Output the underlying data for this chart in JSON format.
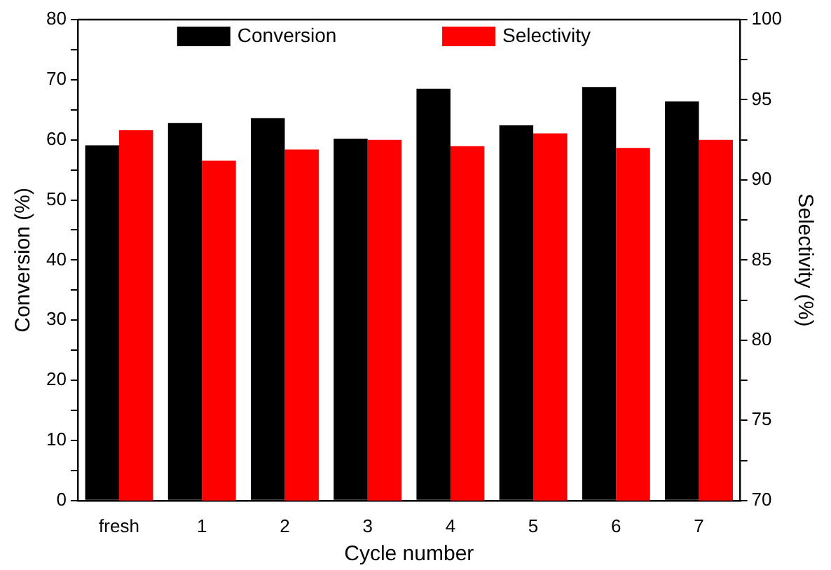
{
  "chart_data": {
    "type": "bar",
    "xlabel": "Cycle number",
    "ylabel": "Conversion (%)",
    "y2label": "Selectivity (%)",
    "categories": [
      "fresh",
      "1",
      "2",
      "3",
      "4",
      "5",
      "6",
      "7"
    ],
    "series": [
      {
        "name": "Conversion",
        "color": "#000000",
        "values": [
          59.1,
          62.8,
          63.6,
          60.2,
          68.5,
          62.4,
          68.8,
          66.4
        ]
      },
      {
        "name": "Selectivity",
        "color": "#ff0000",
        "axis": "y2",
        "values": [
          93.1,
          91.2,
          91.9,
          92.5,
          92.1,
          92.9,
          92.0,
          92.5
        ]
      }
    ],
    "ylim": [
      0,
      80
    ],
    "yticks": [
      0,
      {
        "value": 5,
        "label": null
      },
      10,
      {
        "value": 15,
        "label": null
      },
      20,
      {
        "value": 25,
        "label": null
      },
      30,
      {
        "value": 35,
        "label": null
      },
      40,
      {
        "value": 45,
        "label": null
      },
      50,
      {
        "value": 55,
        "label": null
      },
      60,
      {
        "value": 65,
        "label": null
      },
      70,
      {
        "value": 75,
        "label": null
      },
      80
    ],
    "y2lim": [
      70,
      100
    ],
    "y2ticks": [
      70,
      {
        "value": 72.5,
        "label": null
      },
      75,
      {
        "value": 77.5,
        "label": null
      },
      80,
      {
        "value": 82.5,
        "label": null
      },
      85,
      {
        "value": 87.5,
        "label": null
      },
      90,
      {
        "value": 92.5,
        "label": null
      },
      95,
      {
        "value": 97.5,
        "label": null
      },
      100
    ],
    "grid": false,
    "legend": "top"
  }
}
